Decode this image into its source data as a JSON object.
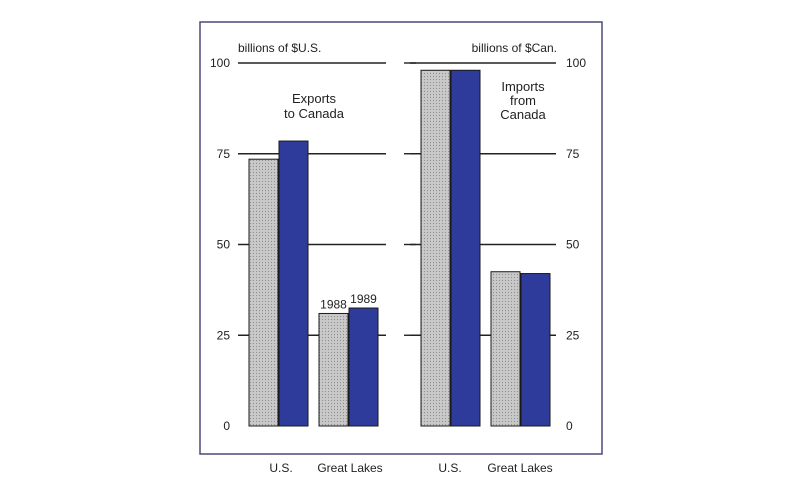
{
  "chart_data": [
    {
      "type": "bar",
      "unit_label": "billions of $U.S.",
      "annotation": [
        "Exports",
        "to Canada"
      ],
      "categories": [
        "U.S.",
        "Great Lakes"
      ],
      "series": [
        {
          "name": "1988",
          "values": [
            73.5,
            31
          ]
        },
        {
          "name": "1989",
          "values": [
            78.5,
            32.5
          ]
        }
      ],
      "ylim": [
        0,
        100
      ],
      "yticks": [
        0,
        25,
        50,
        75,
        100
      ],
      "tick_side": "left",
      "grid": true
    },
    {
      "type": "bar",
      "unit_label": "billions of $Can.",
      "annotation": [
        "Imports",
        "from",
        "Canada"
      ],
      "categories": [
        "U.S.",
        "Great Lakes"
      ],
      "series": [
        {
          "name": "1988",
          "values": [
            98,
            42.5
          ]
        },
        {
          "name": "1989",
          "values": [
            98,
            42
          ]
        }
      ],
      "ylim": [
        0,
        100
      ],
      "yticks": [
        0,
        25,
        50,
        75,
        100
      ],
      "tick_side": "right",
      "grid": true
    }
  ],
  "colors": {
    "series_1988": "#c4c4c4",
    "series_1989": "#2e3b9a",
    "frame": "#4a4a7a",
    "grid": "#222222"
  }
}
